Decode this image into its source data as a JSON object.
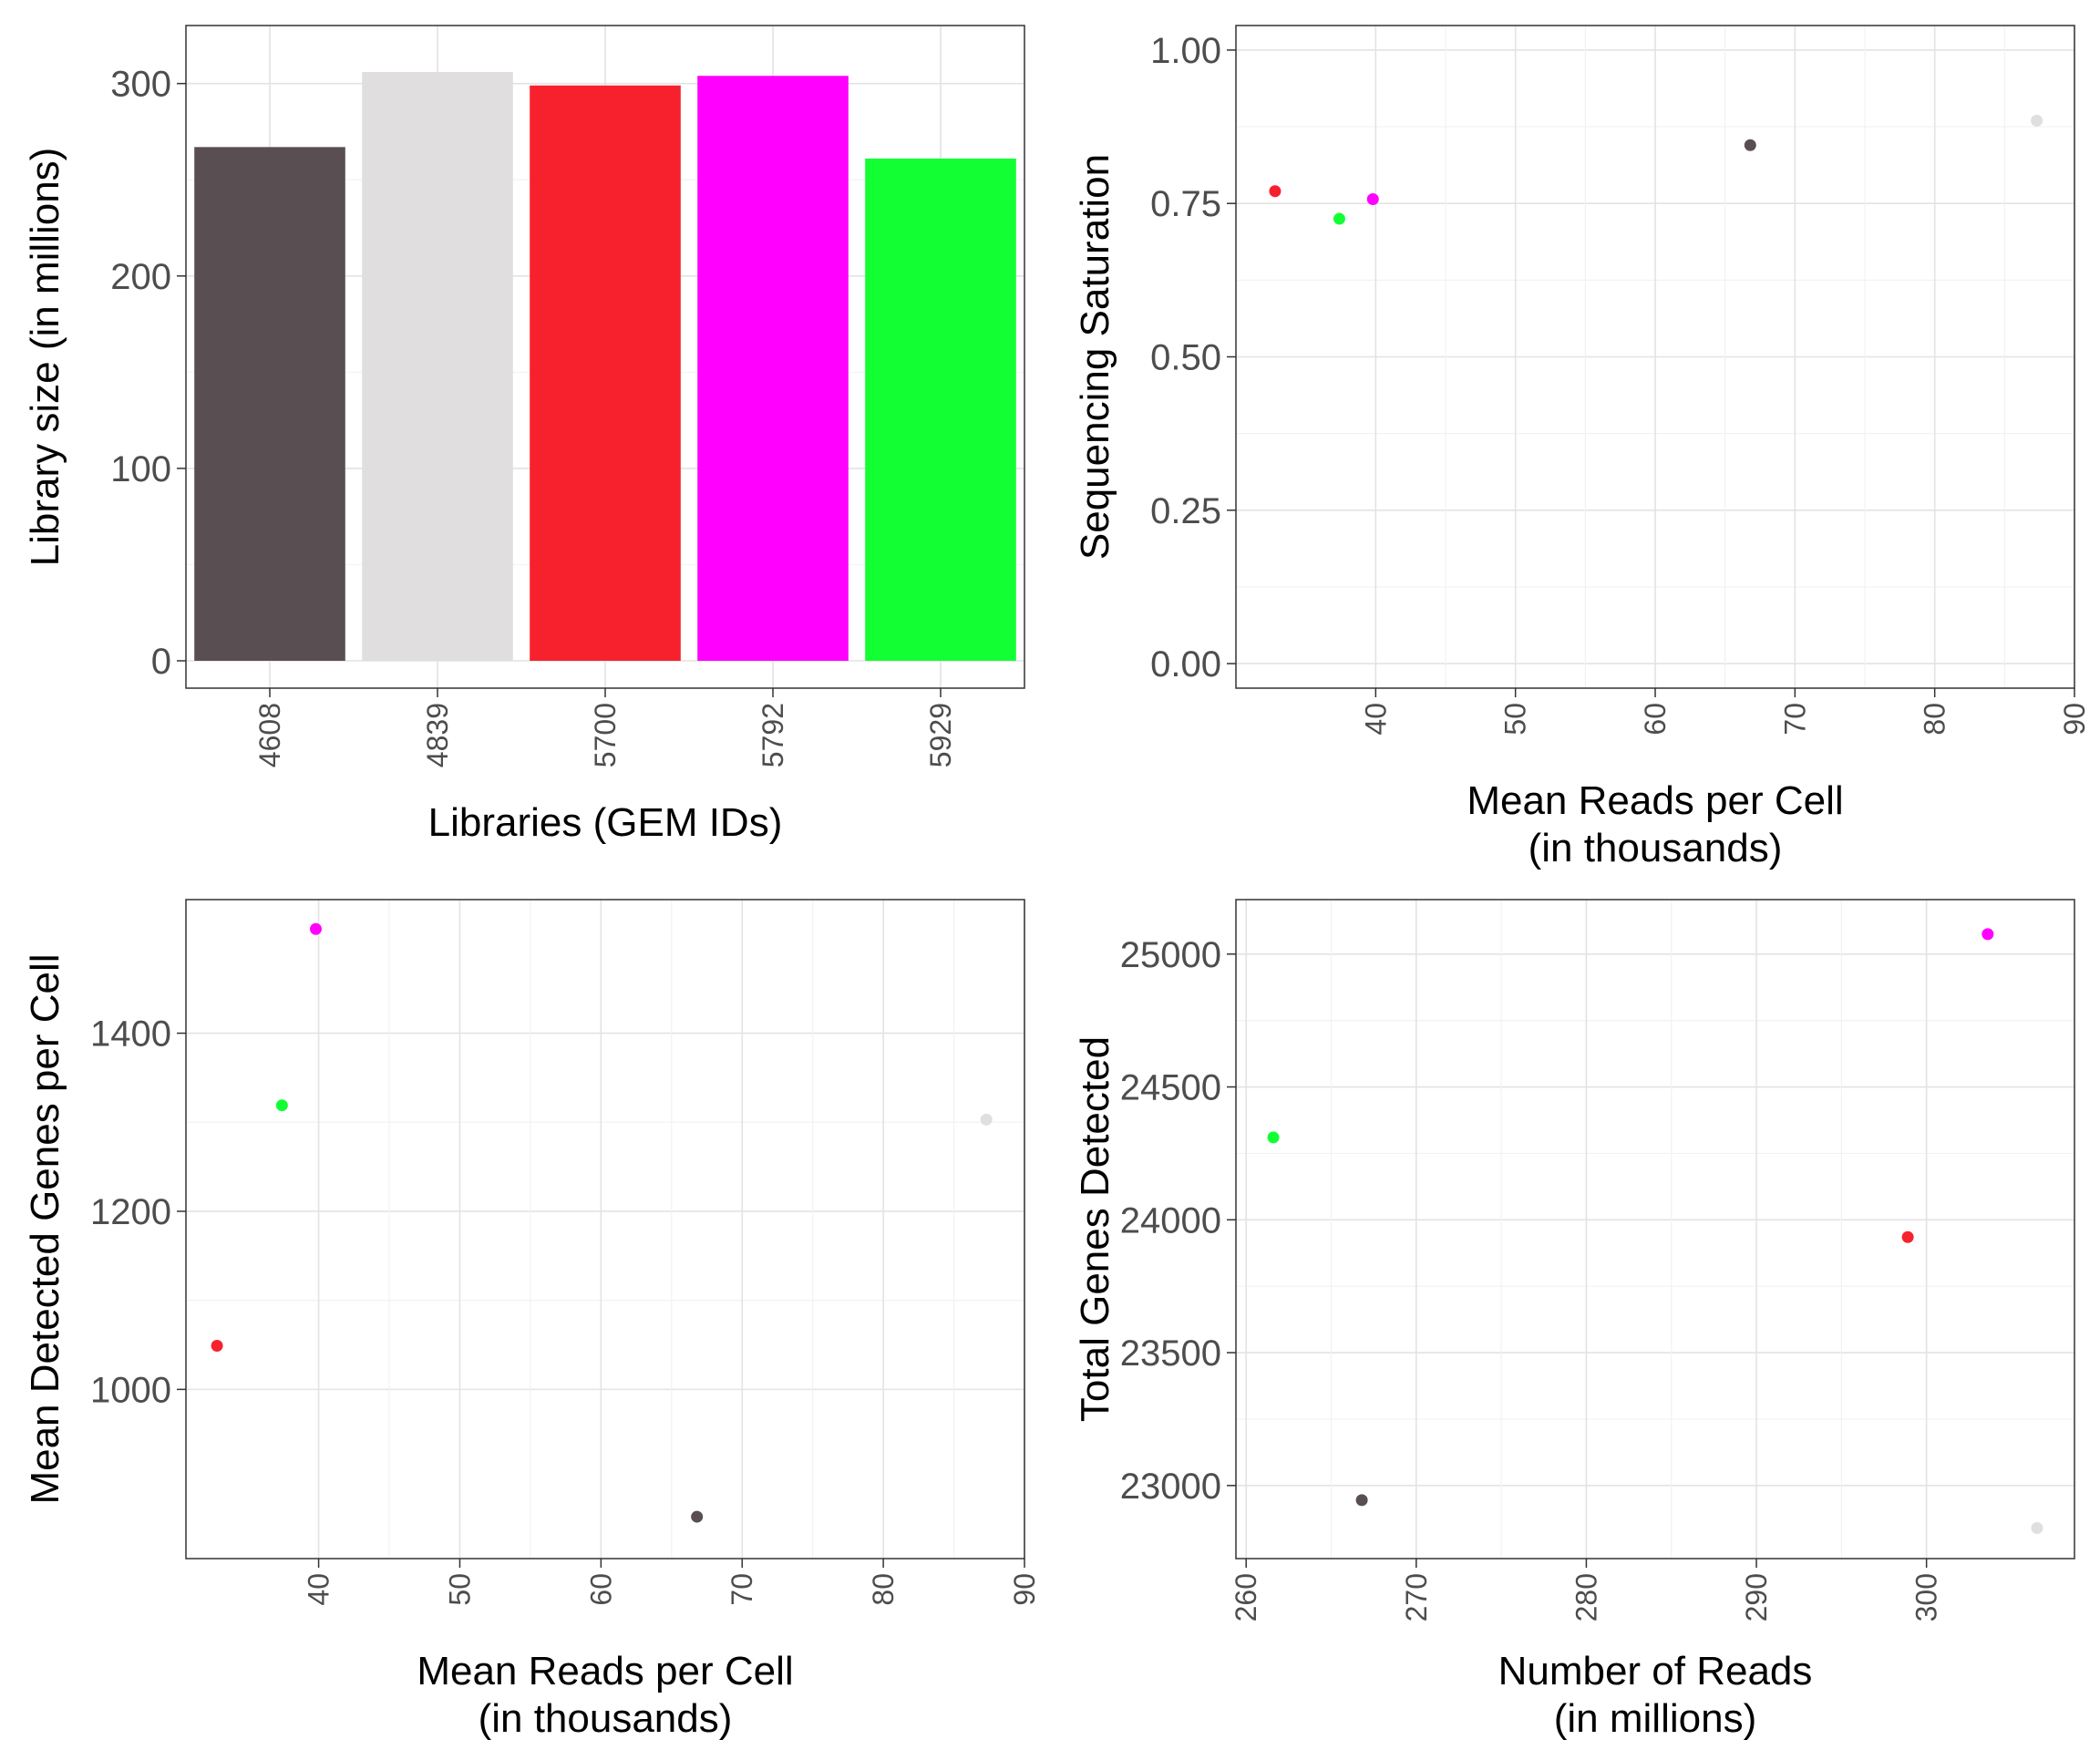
{
  "colors": {
    "4608": "#594F52",
    "4839": "#E0DEDE",
    "5700": "#F7212E",
    "5792": "#FF00FF",
    "5929": "#12FF33",
    "grid_major": "#e3e3e3",
    "grid_minor": "#f2f2f2",
    "border": "#333333",
    "tick_text": "#4d4d4d"
  },
  "chart_data": [
    {
      "type": "bar",
      "categories": [
        "4608",
        "4839",
        "5700",
        "5792",
        "5929"
      ],
      "values": [
        267,
        306,
        299,
        304,
        261
      ],
      "title": "",
      "xlabel": "Libraries (GEM IDs)",
      "ylabel": "Library size (in millions)",
      "ylim": [
        0,
        315
      ],
      "yticks": [
        0,
        100,
        200,
        300
      ],
      "grid": true
    },
    {
      "type": "scatter",
      "title": "",
      "xlabel": "Mean Reads per Cell\n(in thousands)",
      "ylabel": "Sequencing Saturation",
      "xlim": [
        30,
        90
      ],
      "ylim": [
        -0.04,
        1.04
      ],
      "xticks": [
        40,
        50,
        60,
        70,
        80,
        90
      ],
      "yticks": [
        0.0,
        0.25,
        0.5,
        0.75,
        1.0
      ],
      "ytick_labels": [
        "0.00",
        "0.25",
        "0.50",
        "0.75",
        "1.00"
      ],
      "grid": true,
      "points": [
        {
          "id": "4608",
          "x": 66.8,
          "y": 0.845
        },
        {
          "id": "4839",
          "x": 87.3,
          "y": 0.885
        },
        {
          "id": "5700",
          "x": 32.8,
          "y": 0.77
        },
        {
          "id": "5792",
          "x": 39.8,
          "y": 0.757
        },
        {
          "id": "5929",
          "x": 37.4,
          "y": 0.725
        }
      ]
    },
    {
      "type": "scatter",
      "title": "",
      "xlabel": "Mean Reads per Cell\n(in thousands)",
      "ylabel": "Mean Detected Genes per Cell",
      "xlim": [
        30.6,
        90
      ],
      "ylim": [
        810,
        1550
      ],
      "xticks": [
        40,
        50,
        60,
        70,
        80,
        90
      ],
      "yticks": [
        1000,
        1200,
        1400
      ],
      "grid": true,
      "points": [
        {
          "id": "4608",
          "x": 66.8,
          "y": 857
        },
        {
          "id": "4839",
          "x": 87.3,
          "y": 1303
        },
        {
          "id": "5700",
          "x": 32.8,
          "y": 1049
        },
        {
          "id": "5792",
          "x": 39.8,
          "y": 1517
        },
        {
          "id": "5929",
          "x": 37.4,
          "y": 1319
        }
      ]
    },
    {
      "type": "scatter",
      "title": "",
      "xlabel": "Number of Reads\n(in millions)",
      "ylabel": "Total Genes Detected",
      "xlim": [
        259.4,
        308.7
      ],
      "ylim": [
        22725,
        25205
      ],
      "xticks": [
        260,
        270,
        280,
        290,
        300
      ],
      "yticks": [
        23000,
        23500,
        24000,
        24500,
        25000
      ],
      "grid": true,
      "points": [
        {
          "id": "4608",
          "x": 266.8,
          "y": 22945
        },
        {
          "id": "4839",
          "x": 306.5,
          "y": 22840
        },
        {
          "id": "5700",
          "x": 298.9,
          "y": 23935
        },
        {
          "id": "5792",
          "x": 303.6,
          "y": 25075
        },
        {
          "id": "5929",
          "x": 261.6,
          "y": 24310
        }
      ]
    }
  ]
}
